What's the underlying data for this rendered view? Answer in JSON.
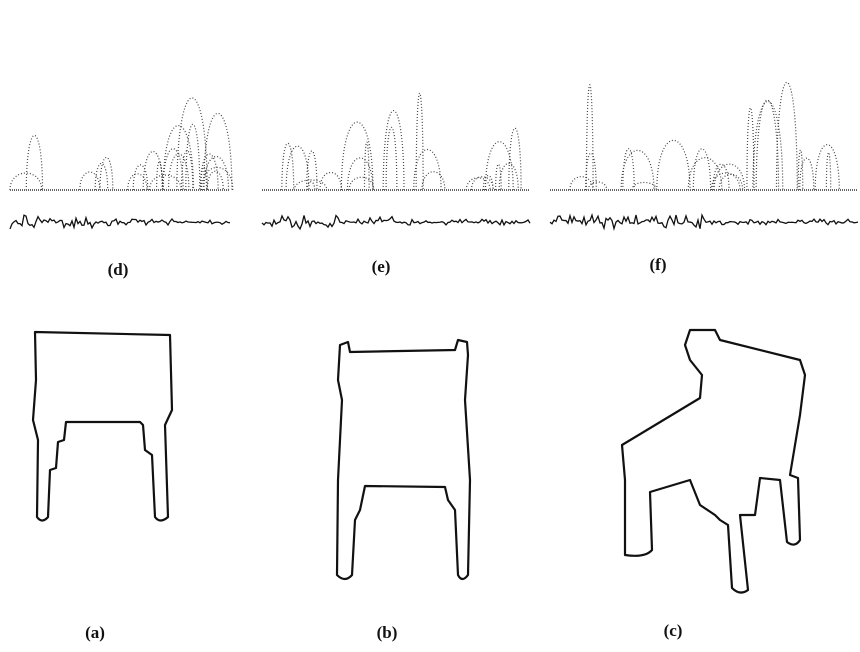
{
  "figure": {
    "top_labels": [
      "(d)",
      "(e)",
      "(f)"
    ],
    "bottom_labels": [
      "(a)",
      "(b)",
      "(c)"
    ]
  }
}
